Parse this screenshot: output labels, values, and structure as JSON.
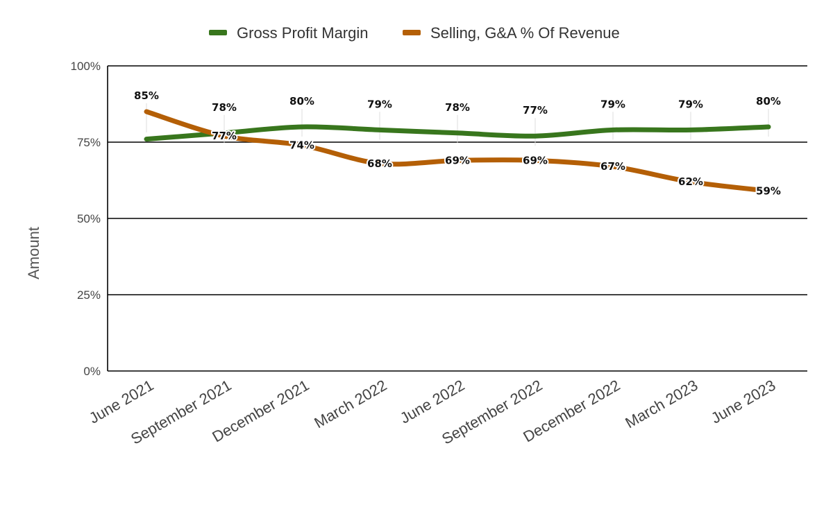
{
  "chart_data": {
    "type": "line",
    "title": "",
    "xlabel": "",
    "ylabel": "Amount",
    "categories": [
      "June 2021",
      "September 2021",
      "December 2021",
      "March 2022",
      "June 2022",
      "September 2022",
      "December 2022",
      "March 2023",
      "June 2023"
    ],
    "series": [
      {
        "name": "Gross Profit Margin",
        "color": "#38761d",
        "values": [
          76,
          78,
          80,
          79,
          78,
          77,
          79,
          79,
          80
        ],
        "labels": [
          "",
          "78%",
          "80%",
          "79%",
          "78%",
          "77%",
          "79%",
          "79%",
          "80%"
        ]
      },
      {
        "name": "Selling, G&A % Of Revenue",
        "color": "#b45f06",
        "values": [
          85,
          77,
          74,
          68,
          69,
          69,
          67,
          62,
          59
        ],
        "labels": [
          "85%",
          "77%",
          "74%",
          "68%",
          "69%",
          "69%",
          "67%",
          "62%",
          "59%"
        ]
      }
    ],
    "ylim": [
      0,
      100
    ],
    "yticks": [
      "0%",
      "25%",
      "50%",
      "75%",
      "100%"
    ],
    "ytick_values": [
      0,
      25,
      50,
      75,
      100
    ],
    "grid": true,
    "legend": "top"
  }
}
